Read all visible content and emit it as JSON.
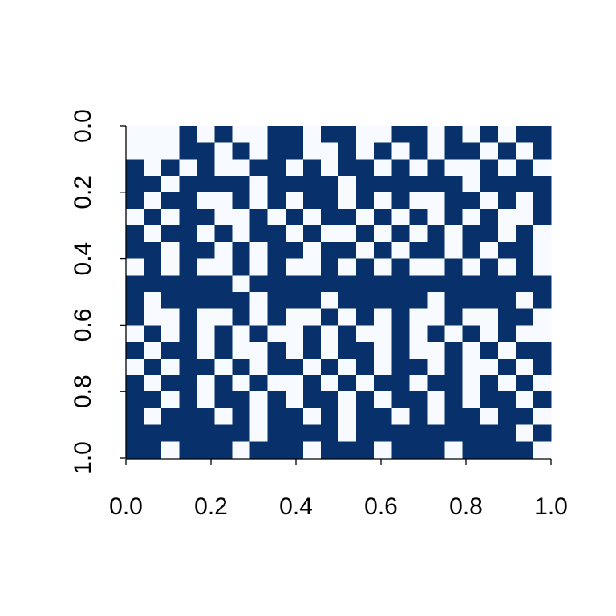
{
  "chart_data": {
    "type": "heatmap",
    "colors": [
      "#f7fbff",
      "#08306b"
    ],
    "xlim": [
      0,
      1
    ],
    "ylim": [
      0,
      1
    ],
    "y_inverted": true,
    "xticks": [
      {
        "value": 0,
        "label": "0.0"
      },
      {
        "value": 0.2,
        "label": "0.2"
      },
      {
        "value": 0.4,
        "label": "0.4"
      },
      {
        "value": 0.6,
        "label": "0.6"
      },
      {
        "value": 0.8,
        "label": "0.8"
      },
      {
        "value": 1,
        "label": "1.0"
      }
    ],
    "yticks": [
      {
        "value": 0,
        "label": "0.0"
      },
      {
        "value": 0.2,
        "label": "0.2"
      },
      {
        "value": 0.4,
        "label": "0.4"
      },
      {
        "value": 0.6,
        "label": "0.6"
      },
      {
        "value": 0.8,
        "label": "0.8"
      },
      {
        "value": 1,
        "label": "1.0"
      }
    ],
    "z": [
      [
        0,
        0,
        0,
        1,
        0,
        1,
        0,
        0,
        1,
        1,
        0,
        1,
        1,
        0,
        0,
        1,
        1,
        0,
        1,
        0,
        1,
        0,
        1,
        1
      ],
      [
        0,
        0,
        0,
        1,
        1,
        0,
        1,
        0,
        1,
        1,
        0,
        0,
        1,
        0,
        1,
        0,
        1,
        0,
        1,
        1,
        0,
        1,
        0,
        1
      ],
      [
        1,
        0,
        1,
        0,
        1,
        0,
        0,
        1,
        1,
        0,
        1,
        0,
        1,
        1,
        0,
        1,
        0,
        1,
        0,
        0,
        1,
        0,
        1,
        0
      ],
      [
        1,
        1,
        0,
        1,
        1,
        1,
        1,
        0,
        1,
        1,
        1,
        1,
        0,
        1,
        1,
        1,
        1,
        1,
        1,
        0,
        1,
        1,
        1,
        1
      ],
      [
        1,
        0,
        1,
        1,
        0,
        0,
        1,
        0,
        1,
        0,
        1,
        1,
        0,
        1,
        0,
        1,
        0,
        0,
        1,
        1,
        0,
        1,
        0,
        1
      ],
      [
        0,
        1,
        0,
        1,
        1,
        0,
        0,
        1,
        0,
        1,
        0,
        1,
        1,
        0,
        1,
        0,
        1,
        0,
        1,
        0,
        1,
        0,
        0,
        1
      ],
      [
        1,
        0,
        1,
        1,
        0,
        1,
        0,
        1,
        1,
        0,
        1,
        0,
        0,
        1,
        0,
        1,
        0,
        1,
        0,
        1,
        1,
        0,
        1,
        0
      ],
      [
        1,
        1,
        0,
        1,
        1,
        0,
        1,
        0,
        1,
        1,
        0,
        1,
        1,
        0,
        1,
        0,
        1,
        1,
        0,
        1,
        0,
        1,
        1,
        0
      ],
      [
        0,
        1,
        0,
        1,
        0,
        0,
        1,
        0,
        1,
        0,
        0,
        1,
        0,
        1,
        0,
        1,
        0,
        0,
        1,
        0,
        1,
        0,
        1,
        0
      ],
      [
        1,
        1,
        1,
        1,
        1,
        1,
        0,
        1,
        1,
        1,
        1,
        1,
        1,
        1,
        1,
        1,
        1,
        1,
        1,
        1,
        1,
        1,
        1,
        1
      ],
      [
        1,
        0,
        1,
        1,
        1,
        1,
        1,
        0,
        1,
        1,
        1,
        0,
        1,
        1,
        1,
        1,
        1,
        0,
        1,
        1,
        1,
        1,
        0,
        1
      ],
      [
        1,
        0,
        0,
        1,
        0,
        0,
        1,
        0,
        1,
        0,
        0,
        1,
        0,
        1,
        0,
        1,
        0,
        0,
        1,
        0,
        0,
        1,
        1,
        0
      ],
      [
        0,
        1,
        0,
        1,
        0,
        1,
        0,
        1,
        0,
        0,
        1,
        0,
        1,
        0,
        0,
        1,
        0,
        1,
        0,
        1,
        0,
        1,
        0,
        0
      ],
      [
        1,
        0,
        1,
        1,
        0,
        1,
        0,
        0,
        1,
        0,
        1,
        0,
        1,
        1,
        0,
        1,
        0,
        0,
        1,
        0,
        1,
        0,
        1,
        1
      ],
      [
        0,
        1,
        0,
        1,
        1,
        0,
        1,
        0,
        1,
        1,
        0,
        1,
        0,
        1,
        0,
        1,
        1,
        0,
        1,
        0,
        0,
        1,
        0,
        1
      ],
      [
        1,
        0,
        1,
        1,
        0,
        1,
        0,
        1,
        0,
        0,
        1,
        0,
        1,
        0,
        1,
        1,
        0,
        1,
        1,
        0,
        1,
        0,
        1,
        0
      ],
      [
        1,
        1,
        0,
        1,
        0,
        1,
        1,
        0,
        1,
        0,
        1,
        1,
        0,
        1,
        0,
        1,
        1,
        0,
        1,
        0,
        1,
        1,
        0,
        1
      ],
      [
        1,
        0,
        1,
        1,
        1,
        0,
        1,
        0,
        1,
        1,
        0,
        1,
        0,
        1,
        1,
        0,
        1,
        0,
        1,
        1,
        0,
        1,
        1,
        0
      ],
      [
        1,
        1,
        1,
        1,
        1,
        1,
        1,
        0,
        1,
        1,
        1,
        1,
        0,
        1,
        1,
        1,
        1,
        1,
        1,
        1,
        1,
        1,
        0,
        1
      ],
      [
        1,
        1,
        0,
        1,
        1,
        1,
        0,
        1,
        1,
        1,
        0,
        1,
        1,
        1,
        0,
        1,
        1,
        1,
        0,
        1,
        1,
        1,
        1,
        0
      ]
    ]
  }
}
